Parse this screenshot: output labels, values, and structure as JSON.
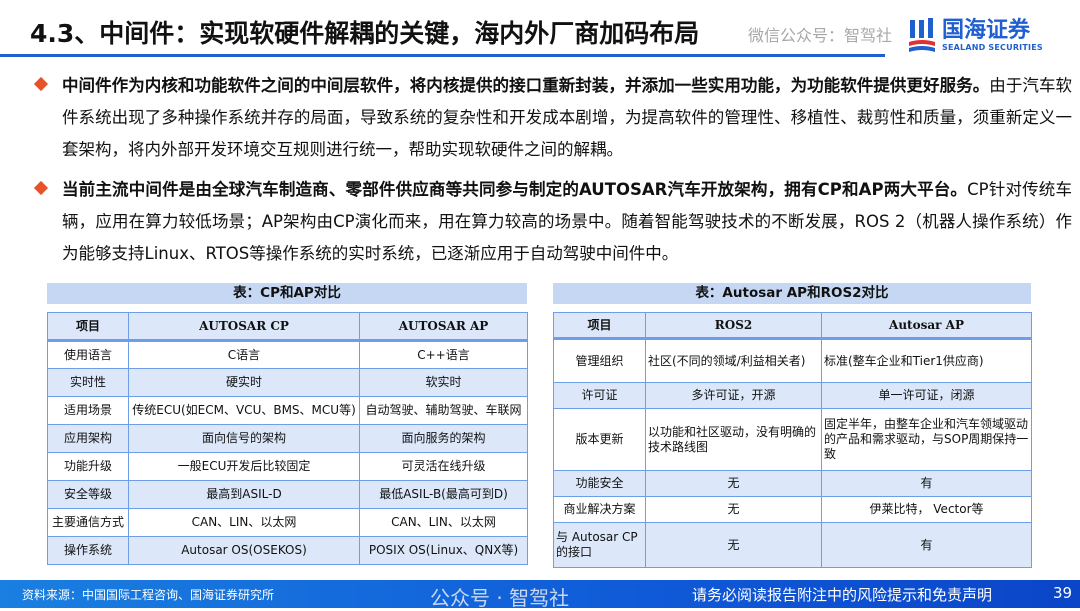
{
  "watermark_top": "微信公众号：智驾社",
  "title": "4.3、中间件：实现软硬件解耦的关键，海内外厂商加码布局",
  "logo": {
    "cn": "国海证券",
    "en": "SEALAND SECURITIES",
    "color": "#1f5fd0"
  },
  "bullets": [
    {
      "bold": "中间件作为内核和功能软件之间的中间层软件，将内核提供的接口重新封装，并添加一些实用功能，为功能软件提供更好服务。",
      "text": "由于汽车软件系统出现了多种操作系统并存的局面，导致系统的复杂性和开发成本剧增，为提高软件的管理性、移植性、裁剪性和质量，须重新定义一套架构，将内外部开发环境交互规则进行统一，帮助实现软硬件之间的解耦。"
    },
    {
      "bold": "当前主流中间件是由全球汽车制造商、零部件供应商等共同参与制定的AUTOSAR汽车开放架构，拥有CP和AP两大平台。",
      "text": "CP针对传统车辆，应用在算力较低场景；AP架构由CP演化而来，用在算力较高的场景中。随着智能驾驶技术的不断发展，ROS 2（机器人操作系统）作为能够支持Linux、RTOS等操作系统的实时系统，已逐渐应用于自动驾驶中间件中。"
    }
  ],
  "table1": {
    "caption": "表：CP和AP对比",
    "header": [
      "项目",
      "AUTOSAR CP",
      "AUTOSAR AP"
    ],
    "rows": [
      [
        "使用语言",
        "C语言",
        "C++语言"
      ],
      [
        "实时性",
        "硬实时",
        "软实时"
      ],
      [
        "适用场景",
        "传统ECU(如ECM、VCU、BMS、MCU等)",
        "自动驾驶、辅助驾驶、车联网"
      ],
      [
        "应用架构",
        "面向信号的架构",
        "面向服务的架构"
      ],
      [
        "功能升级",
        "一般ECU开发后比较固定",
        "可灵活在线升级"
      ],
      [
        "安全等级",
        "最高到ASIL-D",
        "最低ASIL-B(最高可到D)"
      ],
      [
        "主要通信方式",
        "CAN、LIN、以太网",
        "CAN、LIN、以太网"
      ],
      [
        "操作系统",
        "Autosar OS(OSEKOS)",
        "POSIX OS(Linux、QNX等)"
      ]
    ]
  },
  "table2": {
    "caption": "表：Autosar AP和ROS2对比",
    "header": [
      "项目",
      "ROS2",
      "Autosar AP"
    ],
    "rows": [
      [
        "管理组织",
        "社区(不同的领域/利益相关者)",
        "标准(整车企业和Tier1供应商)"
      ],
      [
        "许可证",
        "多许可证，开源",
        "单一许可证，闭源"
      ],
      [
        "版本更新",
        "以功能和社区驱动，没有明确的技术路线图",
        "固定半年，由整车企业和汽车领域驱动的产品和需求驱动，与SOP周期保持一致"
      ],
      [
        "功能安全",
        "无",
        "有"
      ],
      [
        "商业解决方案",
        "无",
        "伊莱比特， Vector等"
      ],
      [
        "与 Autosar CP 的接口",
        "无",
        "有"
      ]
    ]
  },
  "watermark_bottom": "公众号 · 智驾社",
  "footer": {
    "source": "资料来源：中国国际工程咨询、国海证券研究所",
    "disclaimer": "请务必阅读报告附注中的风险提示和免责声明",
    "page": "39"
  },
  "colors": {
    "accent": "#1f5fd0",
    "bullet": "#e8522b",
    "table_border": "#6f9ee8",
    "row_alt": "#dce8fa",
    "caption_bg": "#c5d7f3"
  }
}
